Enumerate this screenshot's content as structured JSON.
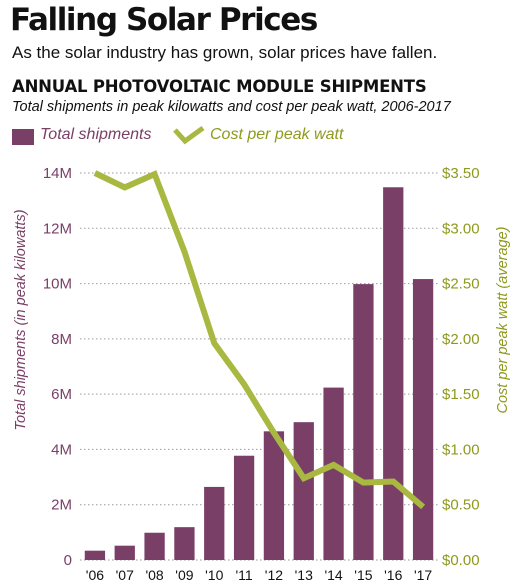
{
  "header": {
    "title": "Falling Solar Prices",
    "subtitle": "As the solar industry has grown, solar prices have fallen."
  },
  "chart_data": {
    "type": "bar",
    "title": "ANNUAL PHOTOVOLTAIC MODULE SHIPMENTS",
    "subtitle": "Total shipments in peak kilowatts and cost per peak watt, 2006-2017",
    "categories": [
      "'06",
      "'07",
      "'08",
      "'09",
      "'10",
      "'11",
      "'12",
      "'13",
      "'14",
      "'15",
      "'16",
      "'17"
    ],
    "series": [
      {
        "name": "Total shipments",
        "type": "bar",
        "axis": "left",
        "color": "#7a3f67",
        "values": [
          337000,
          518000,
          986000,
          1188000,
          2644000,
          3772000,
          4655000,
          4986000,
          6237000,
          9981000,
          13484000,
          10163000
        ]
      },
      {
        "name": "Cost per peak watt",
        "type": "line",
        "axis": "right",
        "color": "#a9b841",
        "values": [
          3.5,
          3.37,
          3.49,
          2.79,
          1.96,
          1.59,
          1.15,
          0.74,
          0.86,
          0.7,
          0.71,
          0.48
        ]
      }
    ],
    "ylabel": "Total shipments (in peak  kilowatts)",
    "ylim": [
      0,
      14000000
    ],
    "yticks": [
      "0",
      "2M",
      "4M",
      "6M",
      "8M",
      "10M",
      "12M",
      "14M"
    ],
    "y2label": "Cost per peak watt (average)",
    "y2lim": [
      0,
      3.5
    ],
    "y2ticks": [
      "$0.00",
      "$0.50",
      "$1.00",
      "$1.50",
      "$2.00",
      "$2.50",
      "$3.00",
      "$3.50"
    ],
    "grid": "horizontal dotted",
    "legend_position": "top-left",
    "left_axis_color": "#7a3f67",
    "right_axis_color": "#8e9a1e"
  }
}
